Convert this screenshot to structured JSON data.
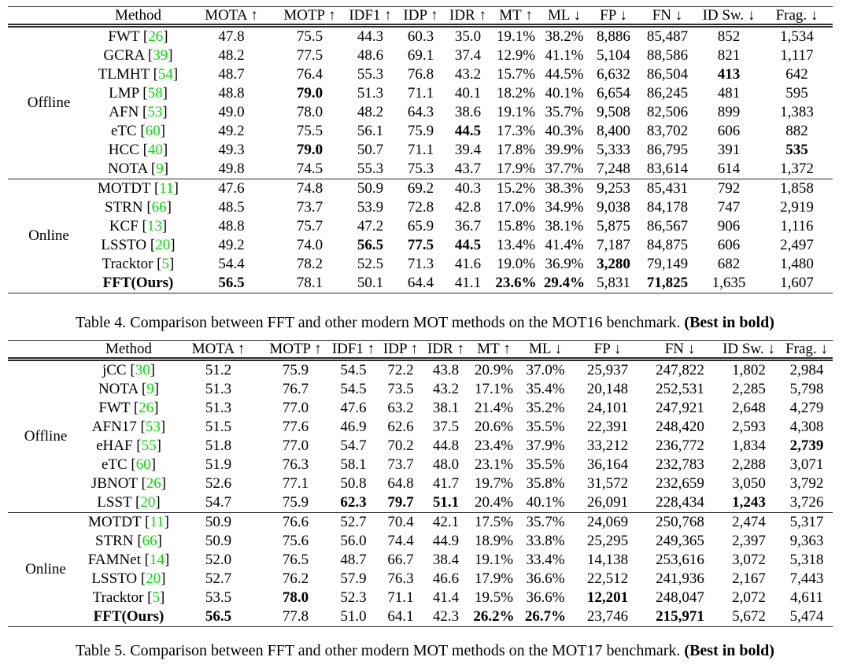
{
  "colors": {
    "citation_green": "#00dd00",
    "text": "#000000",
    "rule": "#2b2b2b"
  },
  "tables": [
    {
      "name": "MOT16 comparison table",
      "caption_prefix": "Table 4. Comparison between FFT and other modern MOT methods on the MOT16 benchmark.",
      "caption_bold": "(Best in bold)",
      "columns": [
        "Method",
        "MOTA ↑",
        "MOTP ↑",
        "IDF1 ↑",
        "IDP ↑",
        "IDR ↑",
        "MT ↑",
        "ML ↓",
        "FP ↓",
        "FN ↓",
        "ID Sw. ↓",
        "Frag. ↓"
      ],
      "groups": [
        {
          "label": "Offline",
          "rows": [
            {
              "method": "FWT",
              "ref": "26",
              "values": [
                "47.8",
                "75.5",
                "44.3",
                "60.3",
                "35.0",
                "19.1%",
                "38.2%",
                "8,886",
                "85,487",
                "852",
                "1,534"
              ],
              "bold_cols": []
            },
            {
              "method": "GCRA",
              "ref": "39",
              "values": [
                "48.2",
                "77.5",
                "48.6",
                "69.1",
                "37.4",
                "12.9%",
                "41.1%",
                "5,104",
                "88,586",
                "821",
                "1,117"
              ],
              "bold_cols": []
            },
            {
              "method": "TLMHT",
              "ref": "54",
              "values": [
                "48.7",
                "76.4",
                "55.3",
                "76.8",
                "43.2",
                "15.7%",
                "44.5%",
                "6,632",
                "86,504",
                "413",
                "642"
              ],
              "bold_cols": [
                9
              ]
            },
            {
              "method": "LMP",
              "ref": "58",
              "values": [
                "48.8",
                "79.0",
                "51.3",
                "71.1",
                "40.1",
                "18.2%",
                "40.1%",
                "6,654",
                "86,245",
                "481",
                "595"
              ],
              "bold_cols": [
                1
              ]
            },
            {
              "method": "AFN",
              "ref": "53",
              "values": [
                "49.0",
                "78.0",
                "48.2",
                "64.3",
                "38.6",
                "19.1%",
                "35.7%",
                "9,508",
                "82,506",
                "899",
                "1,383"
              ],
              "bold_cols": []
            },
            {
              "method": "eTC",
              "ref": "60",
              "values": [
                "49.2",
                "75.5",
                "56.1",
                "75.9",
                "44.5",
                "17.3%",
                "40.3%",
                "8,400",
                "83,702",
                "606",
                "882"
              ],
              "bold_cols": [
                4
              ]
            },
            {
              "method": "HCC",
              "ref": "40",
              "values": [
                "49.3",
                "79.0",
                "50.7",
                "71.1",
                "39.4",
                "17.8%",
                "39.9%",
                "5,333",
                "86,795",
                "391",
                "535"
              ],
              "bold_cols": [
                1,
                10
              ]
            },
            {
              "method": "NOTA",
              "ref": "9",
              "values": [
                "49.8",
                "74.5",
                "55.3",
                "75.3",
                "43.7",
                "17.9%",
                "37.7%",
                "7,248",
                "83,614",
                "614",
                "1,372"
              ],
              "bold_cols": []
            }
          ]
        },
        {
          "label": "Online",
          "rows": [
            {
              "method": "MOTDT",
              "ref": "11",
              "values": [
                "47.6",
                "74.8",
                "50.9",
                "69.2",
                "40.3",
                "15.2%",
                "38.3%",
                "9,253",
                "85,431",
                "792",
                "1,858"
              ],
              "bold_cols": []
            },
            {
              "method": "STRN",
              "ref": "66",
              "values": [
                "48.5",
                "73.7",
                "53.9",
                "72.8",
                "42.8",
                "17.0%",
                "34.9%",
                "9,038",
                "84,178",
                "747",
                "2,919"
              ],
              "bold_cols": []
            },
            {
              "method": "KCF",
              "ref": "13",
              "values": [
                "48.8",
                "75.7",
                "47.2",
                "65.9",
                "36.7",
                "15.8%",
                "38.1%",
                "5,875",
                "86,567",
                "906",
                "1,116"
              ],
              "bold_cols": []
            },
            {
              "method": "LSSTO",
              "ref": "20",
              "values": [
                "49.2",
                "74.0",
                "56.5",
                "77.5",
                "44.5",
                "13.4%",
                "41.4%",
                "7,187",
                "84,875",
                "606",
                "2,497"
              ],
              "bold_cols": [
                2,
                3,
                4
              ]
            },
            {
              "method": "Tracktor",
              "ref": "5",
              "values": [
                "54.4",
                "78.2",
                "52.5",
                "71.3",
                "41.6",
                "19.0%",
                "36.9%",
                "3,280",
                "79,149",
                "682",
                "1,480"
              ],
              "bold_cols": [
                7
              ]
            },
            {
              "method": "FFT(Ours)",
              "ref": null,
              "bold_method": true,
              "values": [
                "56.5",
                "78.1",
                "50.1",
                "64.4",
                "41.1",
                "23.6%",
                "29.4%",
                "5,831",
                "71,825",
                "1,635",
                "1,607"
              ],
              "bold_cols": [
                0,
                5,
                6,
                8
              ]
            }
          ]
        }
      ]
    },
    {
      "name": "MOT17 comparison table",
      "caption_prefix": "Table 5. Comparison between FFT and other modern MOT methods on the MOT17 benchmark.",
      "caption_bold": "(Best in bold)",
      "columns": [
        "Method",
        "MOTA ↑",
        "MOTP ↑",
        "IDF1 ↑",
        "IDP ↑",
        "IDR ↑",
        "MT ↑",
        "ML ↓",
        "FP ↓",
        "FN ↓",
        "ID Sw. ↓",
        "Frag. ↓"
      ],
      "groups": [
        {
          "label": "Offline",
          "rows": [
            {
              "method": "jCC",
              "ref": "30",
              "values": [
                "51.2",
                "75.9",
                "54.5",
                "72.2",
                "43.8",
                "20.9%",
                "37.0%",
                "25,937",
                "247,822",
                "1,802",
                "2,984"
              ],
              "bold_cols": []
            },
            {
              "method": "NOTA",
              "ref": "9",
              "values": [
                "51.3",
                "76.7",
                "54.5",
                "73.5",
                "43.2",
                "17.1%",
                "35.4%",
                "20,148",
                "252,531",
                "2,285",
                "5,798"
              ],
              "bold_cols": []
            },
            {
              "method": "FWT",
              "ref": "26",
              "values": [
                "51.3",
                "77.0",
                "47.6",
                "63.2",
                "38.1",
                "21.4%",
                "35.2%",
                "24,101",
                "247,921",
                "2,648",
                "4,279"
              ],
              "bold_cols": []
            },
            {
              "method": "AFN17",
              "ref": "53",
              "values": [
                "51.5",
                "77.6",
                "46.9",
                "62.6",
                "37.5",
                "20.6%",
                "35.5%",
                "22,391",
                "248,420",
                "2,593",
                "4,308"
              ],
              "bold_cols": []
            },
            {
              "method": "eHAF",
              "ref": "55",
              "values": [
                "51.8",
                "77.0",
                "54.7",
                "70.2",
                "44.8",
                "23.4%",
                "37.9%",
                "33,212",
                "236,772",
                "1,834",
                "2,739"
              ],
              "bold_cols": [
                10
              ]
            },
            {
              "method": "eTC",
              "ref": "60",
              "values": [
                "51.9",
                "76.3",
                "58.1",
                "73.7",
                "48.0",
                "23.1%",
                "35.5%",
                "36,164",
                "232,783",
                "2,288",
                "3,071"
              ],
              "bold_cols": []
            },
            {
              "method": "JBNOT",
              "ref": "26",
              "values": [
                "52.6",
                "77.1",
                "50.8",
                "64.8",
                "41.7",
                "19.7%",
                "35.8%",
                "31,572",
                "232,659",
                "3,050",
                "3,792"
              ],
              "bold_cols": []
            },
            {
              "method": "LSST",
              "ref": "20",
              "values": [
                "54.7",
                "75.9",
                "62.3",
                "79.7",
                "51.1",
                "20.4%",
                "40.1%",
                "26,091",
                "228,434",
                "1,243",
                "3,726"
              ],
              "bold_cols": [
                2,
                3,
                4,
                9
              ]
            }
          ]
        },
        {
          "label": "Online",
          "rows": [
            {
              "method": "MOTDT",
              "ref": "11",
              "values": [
                "50.9",
                "76.6",
                "52.7",
                "70.4",
                "42.1",
                "17.5%",
                "35.7%",
                "24,069",
                "250,768",
                "2,474",
                "5,317"
              ],
              "bold_cols": []
            },
            {
              "method": "STRN",
              "ref": "66",
              "values": [
                "50.9",
                "75.6",
                "56.0",
                "74.4",
                "44.9",
                "18.9%",
                "33.8%",
                "25,295",
                "249,365",
                "2,397",
                "9,363"
              ],
              "bold_cols": []
            },
            {
              "method": "FAMNet",
              "ref": "14",
              "values": [
                "52.0",
                "76.5",
                "48.7",
                "66.7",
                "38.4",
                "19.1%",
                "33.4%",
                "14,138",
                "253,616",
                "3,072",
                "5,318"
              ],
              "bold_cols": []
            },
            {
              "method": "LSSTO",
              "ref": "20",
              "values": [
                "52.7",
                "76.2",
                "57.9",
                "76.3",
                "46.6",
                "17.9%",
                "36.6%",
                "22,512",
                "241,936",
                "2,167",
                "7,443"
              ],
              "bold_cols": []
            },
            {
              "method": "Tracktor",
              "ref": "5",
              "values": [
                "53.5",
                "78.0",
                "52.3",
                "71.1",
                "41.4",
                "19.5%",
                "36.6%",
                "12,201",
                "248,047",
                "2,072",
                "4,611"
              ],
              "bold_cols": [
                1,
                7
              ]
            },
            {
              "method": "FFT(Ours)",
              "ref": null,
              "bold_method": true,
              "values": [
                "56.5",
                "77.8",
                "51.0",
                "64.1",
                "42.3",
                "26.2%",
                "26.7%",
                "23,746",
                "215,971",
                "5,672",
                "5,474"
              ],
              "bold_cols": [
                0,
                5,
                6,
                8
              ]
            }
          ]
        }
      ]
    }
  ]
}
